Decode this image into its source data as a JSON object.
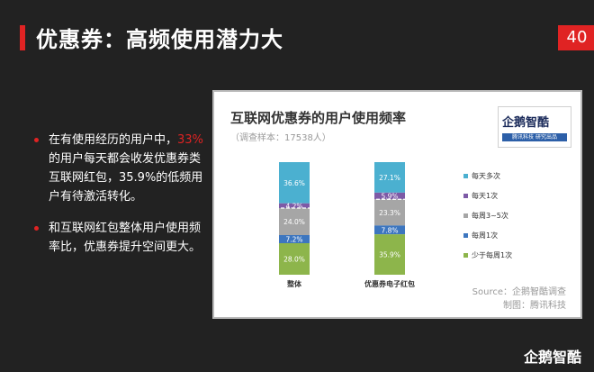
{
  "slide": {
    "title": "优惠券：高频使用潜力大",
    "page_number": "40"
  },
  "bullets": [
    {
      "highlight": "",
      "pre": "在有使用经历的用户中，",
      "hl": "33%",
      "post": "的用户每天都会收发优惠券类互联网红包，35.9%的低频用户有待激活转化。"
    },
    {
      "pre": "和互联网红包整体用户使用频率比，优惠券提升空间更大。",
      "hl": "",
      "post": ""
    }
  ],
  "logo": {
    "text": "企鹅智酷",
    "strip": "腾讯科技 研究出品"
  },
  "source": "Source：企鹅智酷调查",
  "maker": "制图：腾讯科技",
  "brand": "企鹅智酷",
  "colors": {
    "accent": "#e02323",
    "series": [
      "#4bb0d0",
      "#7d5aa6",
      "#a6a6a6",
      "#3d76bf",
      "#8db54b"
    ]
  },
  "chart_data": {
    "type": "bar",
    "stacked": true,
    "title": "互联网优惠券的用户使用频率",
    "subtitle": "（调查样本：17538人）",
    "categories": [
      "整体",
      "优惠券电子红包"
    ],
    "series": [
      {
        "name": "每天多次",
        "values": [
          36.6,
          27.1
        ]
      },
      {
        "name": "每天1次",
        "values": [
          4.2,
          5.9
        ]
      },
      {
        "name": "每周3~5次",
        "values": [
          24.0,
          23.3
        ]
      },
      {
        "name": "每周1次",
        "values": [
          7.2,
          7.8
        ]
      },
      {
        "name": "少于每周1次",
        "values": [
          28.0,
          35.9
        ]
      }
    ],
    "value_labels": [
      [
        "36.6%",
        "4.2%",
        "24.0%",
        "7.2%",
        "28.0%"
      ],
      [
        "27.1%",
        "5.9%",
        "23.3%",
        "7.8%",
        "35.9%"
      ]
    ],
    "legend_position": "right",
    "ylim": [
      0,
      100
    ]
  }
}
